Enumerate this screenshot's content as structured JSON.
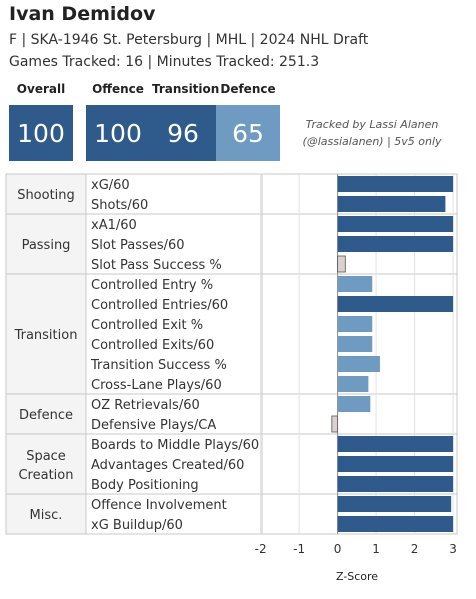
{
  "player": {
    "name": "Ivan Demidov",
    "info": "F | SKA-1946 St. Petersburg | MHL | 2024 NHL Draft",
    "tracked": "Games Tracked: 16 | Minutes Tracked: 251.3"
  },
  "summary": {
    "overall": {
      "label": "Overall",
      "value": "100"
    },
    "offence": {
      "label": "Offence",
      "value": "100"
    },
    "transition": {
      "label": "Transition",
      "value": "96"
    },
    "defence": {
      "label": "Defence",
      "value": "65"
    }
  },
  "credit": {
    "line1": "Tracked by Lassi Alanen",
    "line2": "(@lassialanen) | 5v5 only"
  },
  "colors": {
    "dark": "#2e5b8b",
    "light": "#6f9ac2",
    "pale": "#d9d0cf",
    "grid": "#c8c8c8"
  },
  "chart_data": {
    "type": "bar",
    "orientation": "horizontal",
    "xlabel": "Z-Score",
    "xlim": [
      -2,
      3
    ],
    "xticks": [
      -2,
      -1,
      0,
      1,
      2,
      3
    ],
    "groups": [
      {
        "name": "Shooting",
        "metrics": [
          {
            "label": "xG/60",
            "value": 3.0,
            "tier": "dark"
          },
          {
            "label": "Shots/60",
            "value": 2.8,
            "tier": "dark"
          }
        ]
      },
      {
        "name": "Passing",
        "metrics": [
          {
            "label": "xA1/60",
            "value": 3.0,
            "tier": "dark"
          },
          {
            "label": "Slot Passes/60",
            "value": 3.0,
            "tier": "dark"
          },
          {
            "label": "Slot Pass Success %",
            "value": 0.2,
            "tier": "pale"
          }
        ]
      },
      {
        "name": "Transition",
        "metrics": [
          {
            "label": "Controlled Entry %",
            "value": 0.9,
            "tier": "light"
          },
          {
            "label": "Controlled Entries/60",
            "value": 3.0,
            "tier": "dark"
          },
          {
            "label": "Controlled Exit %",
            "value": 0.9,
            "tier": "light"
          },
          {
            "label": "Controlled Exits/60",
            "value": 0.9,
            "tier": "light"
          },
          {
            "label": "Transition Success %",
            "value": 1.1,
            "tier": "light"
          },
          {
            "label": "Cross-Lane Plays/60",
            "value": 0.8,
            "tier": "light"
          }
        ]
      },
      {
        "name": "Defence",
        "metrics": [
          {
            "label": "OZ Retrievals/60",
            "value": 0.85,
            "tier": "light"
          },
          {
            "label": "Defensive Plays/CA",
            "value": -0.15,
            "tier": "pale"
          }
        ]
      },
      {
        "name": "Space Creation",
        "metrics": [
          {
            "label": "Boards to Middle Plays/60",
            "value": 3.0,
            "tier": "dark"
          },
          {
            "label": "Advantages Created/60",
            "value": 3.0,
            "tier": "dark"
          },
          {
            "label": "Body Positioning",
            "value": 3.0,
            "tier": "dark"
          }
        ]
      },
      {
        "name": "Misc.",
        "metrics": [
          {
            "label": "Offence Involvement",
            "value": 2.95,
            "tier": "dark"
          },
          {
            "label": "xG Buildup/60",
            "value": 3.0,
            "tier": "dark"
          }
        ]
      }
    ]
  }
}
